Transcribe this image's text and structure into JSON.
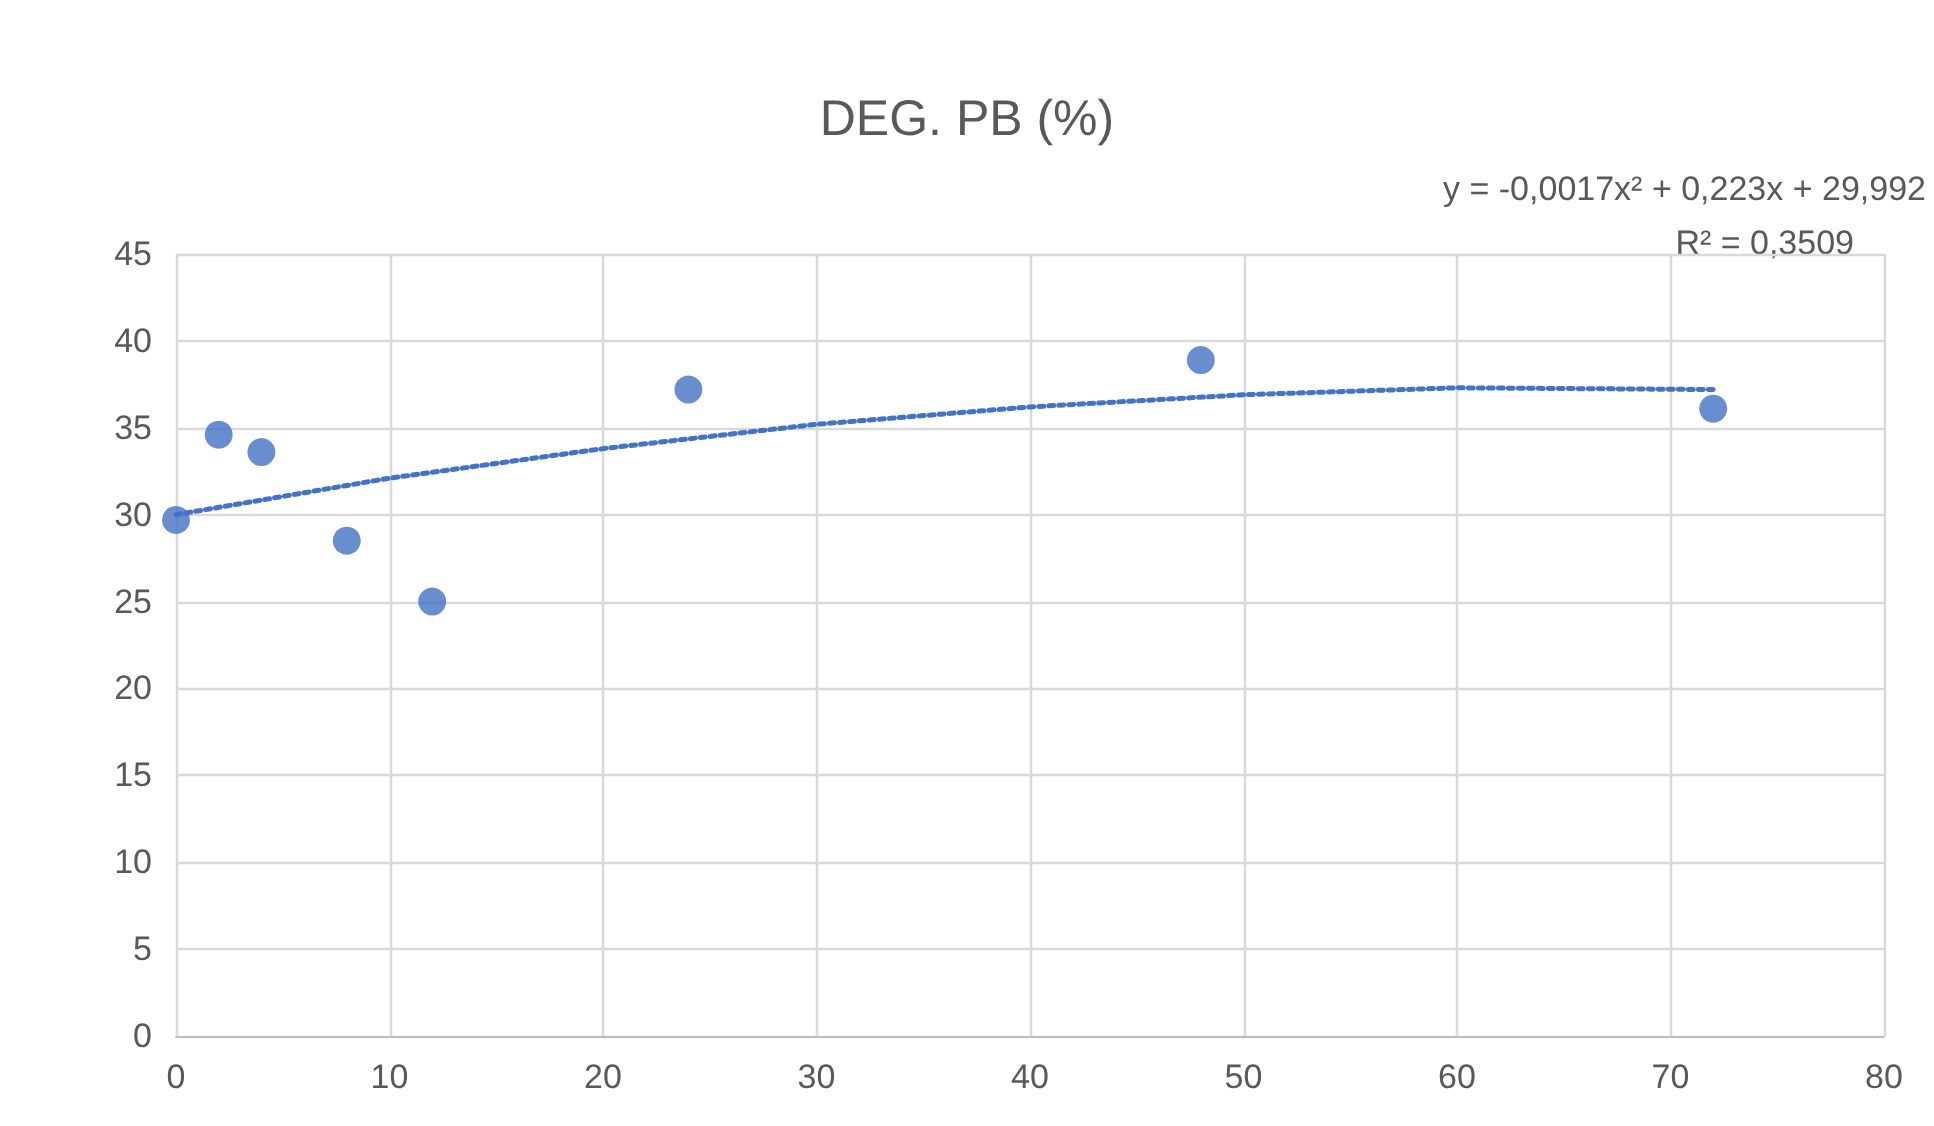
{
  "chart_data": {
    "type": "scatter",
    "title": "DEG. PB (%)",
    "annotations": [
      "y = -0,0017x² + 0,223x + 29,992",
      "R² = 0,3509"
    ],
    "xlim": [
      0,
      80
    ],
    "xticks": [
      0,
      10,
      20,
      30,
      40,
      50,
      60,
      70,
      80
    ],
    "ylim": [
      0,
      45
    ],
    "yticks": [
      0,
      5,
      10,
      15,
      20,
      25,
      30,
      35,
      40,
      45
    ],
    "grid": true,
    "series": [
      {
        "color": "#4472c4",
        "marker": "circle",
        "x": [
          0,
          2,
          4,
          8,
          12,
          24,
          48,
          72
        ],
        "values": [
          29.7,
          34.6,
          33.6,
          28.5,
          25.0,
          37.2,
          38.9,
          36.1
        ]
      },
      {
        "type": "line",
        "color": "#4472c4",
        "marker": "none",
        "line_style": "dotted",
        "x": [
          0,
          10,
          20,
          30,
          40,
          50,
          60,
          72
        ],
        "values": [
          30.0,
          32.1,
          33.8,
          35.2,
          36.2,
          36.9,
          37.3,
          37.2
        ]
      }
    ]
  }
}
